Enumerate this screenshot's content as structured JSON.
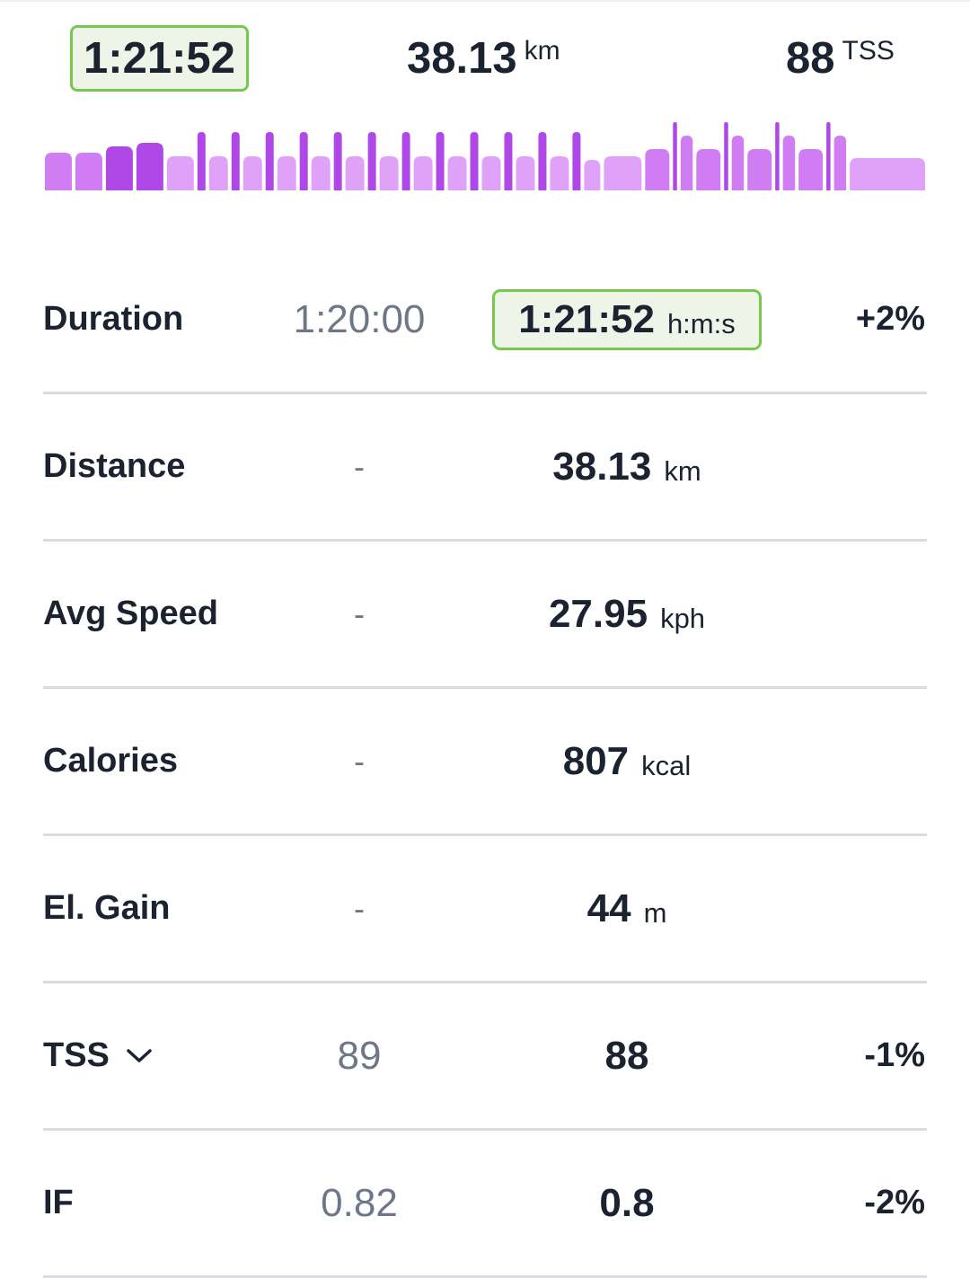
{
  "summary": {
    "duration": "1:21:52",
    "distance": "38.13",
    "distance_unit": "km",
    "tss": "88",
    "tss_unit": "TSS"
  },
  "workout_chart": {
    "colors": {
      "light": "#e0a2f8",
      "mid": "#d07df4",
      "dark": "#b048e8"
    },
    "blocks": [
      {
        "level": 0.55,
        "weight": 1,
        "shade": "mid"
      },
      {
        "level": 0.55,
        "weight": 1,
        "shade": "mid"
      },
      {
        "level": 0.65,
        "weight": 1,
        "shade": "dark"
      },
      {
        "level": 0.7,
        "weight": 1,
        "shade": "dark"
      },
      {
        "level": 0.5,
        "weight": 1,
        "shade": "light"
      },
      {
        "level": 0.85,
        "weight": 0.3,
        "shade": "dark"
      },
      {
        "level": 0.5,
        "weight": 0.7,
        "shade": "light"
      },
      {
        "level": 0.85,
        "weight": 0.3,
        "shade": "dark"
      },
      {
        "level": 0.5,
        "weight": 0.7,
        "shade": "light"
      },
      {
        "level": 0.85,
        "weight": 0.3,
        "shade": "dark"
      },
      {
        "level": 0.5,
        "weight": 0.7,
        "shade": "light"
      },
      {
        "level": 0.85,
        "weight": 0.3,
        "shade": "dark"
      },
      {
        "level": 0.5,
        "weight": 0.7,
        "shade": "light"
      },
      {
        "level": 0.85,
        "weight": 0.3,
        "shade": "dark"
      },
      {
        "level": 0.5,
        "weight": 0.7,
        "shade": "light"
      },
      {
        "level": 0.85,
        "weight": 0.3,
        "shade": "dark"
      },
      {
        "level": 0.5,
        "weight": 0.7,
        "shade": "light"
      },
      {
        "level": 0.85,
        "weight": 0.3,
        "shade": "dark"
      },
      {
        "level": 0.5,
        "weight": 0.7,
        "shade": "light"
      },
      {
        "level": 0.85,
        "weight": 0.3,
        "shade": "dark"
      },
      {
        "level": 0.5,
        "weight": 0.7,
        "shade": "light"
      },
      {
        "level": 0.85,
        "weight": 0.3,
        "shade": "dark"
      },
      {
        "level": 0.5,
        "weight": 0.7,
        "shade": "light"
      },
      {
        "level": 0.85,
        "weight": 0.3,
        "shade": "dark"
      },
      {
        "level": 0.5,
        "weight": 0.7,
        "shade": "light"
      },
      {
        "level": 0.85,
        "weight": 0.3,
        "shade": "dark"
      },
      {
        "level": 0.5,
        "weight": 0.7,
        "shade": "light"
      },
      {
        "level": 0.85,
        "weight": 0.3,
        "shade": "dark"
      },
      {
        "level": 0.45,
        "weight": 0.6,
        "shade": "light"
      },
      {
        "level": 0.5,
        "weight": 1.4,
        "shade": "light"
      },
      {
        "level": 0.6,
        "weight": 0.9,
        "shade": "mid"
      },
      {
        "level": 1.0,
        "weight": 0.15,
        "shade": "dark"
      },
      {
        "level": 0.8,
        "weight": 0.45,
        "shade": "mid"
      },
      {
        "level": 0.6,
        "weight": 0.9,
        "shade": "mid"
      },
      {
        "level": 1.0,
        "weight": 0.15,
        "shade": "dark"
      },
      {
        "level": 0.8,
        "weight": 0.45,
        "shade": "mid"
      },
      {
        "level": 0.6,
        "weight": 0.9,
        "shade": "mid"
      },
      {
        "level": 1.0,
        "weight": 0.15,
        "shade": "dark"
      },
      {
        "level": 0.8,
        "weight": 0.45,
        "shade": "mid"
      },
      {
        "level": 0.6,
        "weight": 0.9,
        "shade": "mid"
      },
      {
        "level": 1.0,
        "weight": 0.15,
        "shade": "dark"
      },
      {
        "level": 0.8,
        "weight": 0.45,
        "shade": "mid"
      },
      {
        "level": 0.48,
        "weight": 2.8,
        "shade": "light"
      }
    ]
  },
  "metrics": [
    {
      "label": "Duration",
      "planned": "1:20:00",
      "actual": "1:21:52",
      "unit": "h:m:s",
      "change": "+2%",
      "highlighted": true,
      "dropdown": false
    },
    {
      "label": "Distance",
      "planned": "-",
      "actual": "38.13",
      "unit": "km",
      "change": "",
      "highlighted": false,
      "dropdown": false
    },
    {
      "label": "Avg Speed",
      "planned": "-",
      "actual": "27.95",
      "unit": "kph",
      "change": "",
      "highlighted": false,
      "dropdown": false
    },
    {
      "label": "Calories",
      "planned": "-",
      "actual": "807",
      "unit": "kcal",
      "change": "",
      "highlighted": false,
      "dropdown": false
    },
    {
      "label": "El. Gain",
      "planned": "-",
      "actual": "44",
      "unit": "m",
      "change": "",
      "highlighted": false,
      "dropdown": false
    },
    {
      "label": "TSS",
      "planned": "89",
      "actual": "88",
      "unit": "",
      "change": "-1%",
      "highlighted": false,
      "dropdown": true
    },
    {
      "label": "IF",
      "planned": "0.82",
      "actual": "0.8",
      "unit": "",
      "change": "-2%",
      "highlighted": false,
      "dropdown": false
    }
  ],
  "icons": {
    "tss_dropdown": "chevron-down-icon"
  }
}
